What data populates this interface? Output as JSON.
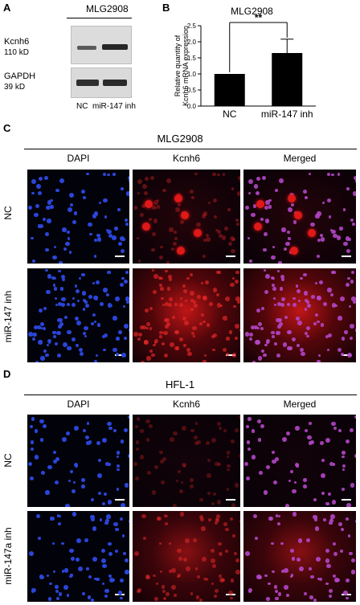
{
  "panel_a": {
    "label": "A",
    "header": "MLG2908",
    "rows": [
      {
        "name": "Kcnh6",
        "size": "110 kD"
      },
      {
        "name": "GAPDH",
        "size": "39 kD"
      }
    ],
    "lanes": [
      "NC",
      "miR-147 inh"
    ]
  },
  "panel_b": {
    "label": "B",
    "significance": "**"
  },
  "chart_data": {
    "type": "bar",
    "title": "MLG2908",
    "categories": [
      "NC",
      "miR-147 inh"
    ],
    "values": [
      1.0,
      1.65
    ],
    "error_upper": [
      null,
      2.08
    ],
    "ylabel": "Relative quantity of Kcnh6 mRNA expression",
    "ylim": [
      0,
      2.5
    ],
    "yticks": [
      "0.0",
      "0.5",
      "1.0",
      "1.5",
      "2.0",
      "2.5"
    ],
    "bar_color": "#000000",
    "grid": false
  },
  "panel_c": {
    "label": "C",
    "header": "MLG2908",
    "columns": [
      "DAPI",
      "Kcnh6",
      "Merged"
    ],
    "rows": [
      "NC",
      "miR-147 inh"
    ]
  },
  "panel_d": {
    "label": "D",
    "header": "HFL-1",
    "columns": [
      "DAPI",
      "Kcnh6",
      "Merged"
    ],
    "rows": [
      "NC",
      "miR-147a inh"
    ]
  },
  "colors": {
    "dapi": "#2a45d8",
    "kcnh6": "#e01818",
    "background": "#02020a"
  }
}
